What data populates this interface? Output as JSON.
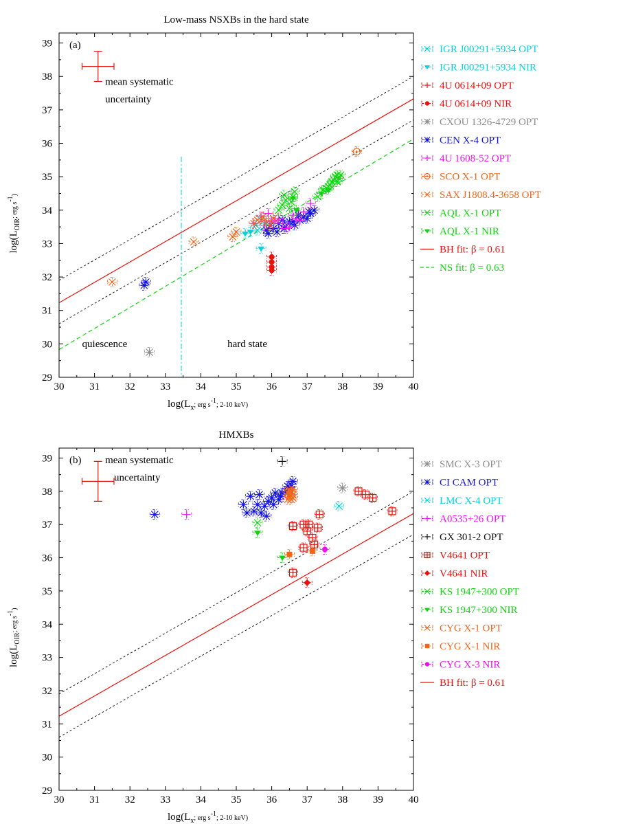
{
  "chart_data": [
    {
      "type": "scatter",
      "panel_label": "(a)",
      "title": "Low-mass NSXBs in the hard state",
      "xlabel": "log(L_x; erg s^-1; 2-10 keV)",
      "ylabel": "log(L_OIR; erg s^-1)",
      "xlim": [
        30,
        40
      ],
      "ylim": [
        29,
        39.3
      ],
      "x_ticks": [
        "30",
        "31",
        "32",
        "33",
        "34",
        "35",
        "36",
        "37",
        "38",
        "39",
        "40"
      ],
      "y_ticks": [
        "29",
        "30",
        "31",
        "32",
        "33",
        "34",
        "35",
        "36",
        "37",
        "38",
        "39"
      ],
      "grid": false,
      "legend_position": "right, outside plot",
      "annotations": {
        "uncertainty": [
          "mean systematic",
          "uncertainty"
        ],
        "left_region": "quiescence",
        "right_region": "hard state"
      },
      "systematic_error": {
        "x": 31.1,
        "y": 38.3,
        "xerr": 0.45,
        "yerr": 0.45
      },
      "divider_x": 33.45,
      "fits": [
        {
          "name": "BH fit: β = 0.61",
          "color": "#e8120c",
          "style": "solid",
          "x": [
            30,
            40
          ],
          "y": [
            31.23,
            37.33
          ]
        },
        {
          "name": "NS fit: β = 0.63",
          "color": "#11d411",
          "style": "dashed",
          "x": [
            30,
            40
          ],
          "y": [
            29.83,
            36.13
          ]
        }
      ],
      "bounds": [
        {
          "style": "dotted",
          "color": "#222222",
          "x": [
            30,
            40
          ],
          "y": [
            31.9,
            38.0
          ]
        },
        {
          "style": "dotted",
          "color": "#222222",
          "x": [
            30,
            40
          ],
          "y": [
            30.6,
            36.7
          ]
        }
      ],
      "series": [
        {
          "name": "IGR J00291+5934   OPT",
          "color": "#00d5dd",
          "marker": "x",
          "x": [
            35.55,
            35.7,
            35.85,
            35.6
          ],
          "y": [
            33.55,
            33.7,
            33.6,
            33.4
          ]
        },
        {
          "name": "IGR J00291+5934   NIR",
          "color": "#00d5dd",
          "marker": "tri",
          "x": [
            35.25,
            35.4,
            35.7
          ],
          "y": [
            33.3,
            33.35,
            32.85
          ]
        },
        {
          "name": "4U 0614+09   OPT",
          "color": "#e8120c",
          "marker": "plus",
          "x": [],
          "y": []
        },
        {
          "name": "4U 0614+09   NIR",
          "color": "#e8120c",
          "marker": "circle",
          "x": [
            36,
            36,
            36,
            36
          ],
          "y": [
            32.6,
            32.45,
            32.3,
            32.2
          ]
        },
        {
          "name": "CXOU 1326-4729   OPT",
          "color": "#8c8c8c",
          "marker": "star",
          "x": [
            32.55
          ],
          "y": [
            29.75
          ]
        },
        {
          "name": "CEN X-4   OPT",
          "color": "#1414e0",
          "marker": "star",
          "x": [
            32.4,
            32.45,
            35.9,
            36.05,
            36.2,
            36.35,
            36.5,
            36.65,
            36.8,
            36.9,
            37.0,
            37.1,
            37.2,
            35.95,
            36.15,
            36.4,
            36.6,
            36.75,
            35.85,
            36.3,
            37.05
          ],
          "y": [
            31.75,
            31.85,
            33.3,
            33.45,
            33.6,
            33.45,
            33.65,
            33.55,
            33.7,
            33.8,
            33.75,
            33.9,
            34.0,
            33.55,
            33.35,
            33.5,
            33.65,
            33.85,
            33.4,
            33.7,
            33.95
          ]
        },
        {
          "name": "4U 1608-52   OPT",
          "color": "#ee12ee",
          "marker": "plus",
          "x": [
            35.5,
            35.7,
            35.9,
            36.1,
            36.3,
            36.5,
            36.7,
            36.9,
            37.1,
            35.8,
            36.0,
            36.2,
            36.4,
            36.6,
            36.8
          ],
          "y": [
            33.6,
            33.8,
            33.9,
            33.7,
            33.6,
            33.5,
            33.75,
            33.95,
            34.2,
            33.55,
            33.65,
            33.75,
            33.45,
            33.85,
            33.7
          ]
        },
        {
          "name": "SCO X-1   OPT",
          "color": "#f26418",
          "marker": "odot",
          "x": [
            38.4
          ],
          "y": [
            35.75
          ]
        },
        {
          "name": "SAX J1808.4-3658   OPT",
          "color": "#f26418",
          "marker": "x",
          "x": [
            31.5,
            33.8,
            34.9,
            35.0,
            35.5,
            35.6,
            35.75,
            35.85,
            35.95,
            36.05
          ],
          "y": [
            31.85,
            33.05,
            33.2,
            33.35,
            33.6,
            33.7,
            33.8,
            33.65,
            33.55,
            33.75
          ]
        },
        {
          "name": "AQL X-1   OPT",
          "color": "#11d411",
          "marker": "x",
          "x": [
            36.2,
            36.3,
            36.4,
            36.5,
            36.6,
            36.65,
            37.3,
            37.45,
            37.55,
            37.65,
            37.7,
            37.75,
            37.8,
            37.85,
            37.9,
            37.95,
            36.35,
            36.55,
            37.6,
            37.85
          ],
          "y": [
            34.0,
            34.15,
            34.3,
            34.05,
            34.4,
            34.55,
            34.4,
            34.6,
            34.65,
            34.75,
            34.85,
            34.9,
            35.0,
            35.05,
            34.95,
            35.05,
            34.45,
            34.25,
            34.7,
            34.85
          ]
        },
        {
          "name": "AQL X-1   NIR",
          "color": "#11d411",
          "marker": "tri",
          "x": [
            36.6,
            36.7,
            37.4,
            37.6
          ],
          "y": [
            34.35,
            34.0,
            34.5,
            34.6
          ]
        }
      ]
    },
    {
      "type": "scatter",
      "panel_label": "(b)",
      "title": "HMXBs",
      "xlabel": "log(L_x; erg s^-1; 2-10 keV)",
      "ylabel": "log(L_OIR; erg s^-1)",
      "xlim": [
        30,
        40
      ],
      "ylim": [
        29,
        39.3
      ],
      "x_ticks": [
        "30",
        "31",
        "32",
        "33",
        "34",
        "35",
        "36",
        "37",
        "38",
        "39",
        "40"
      ],
      "y_ticks": [
        "29",
        "30",
        "31",
        "32",
        "33",
        "34",
        "35",
        "36",
        "37",
        "38",
        "39"
      ],
      "grid": false,
      "legend_position": "right, outside plot",
      "annotations": {
        "uncertainty": [
          "mean systematic",
          "uncertainty"
        ]
      },
      "systematic_error": {
        "x": 31.1,
        "y": 38.3,
        "xerr": 0.45,
        "yerr": 0.6
      },
      "fits": [
        {
          "name": "BH fit: β = 0.61",
          "color": "#e8120c",
          "style": "solid",
          "x": [
            30,
            40
          ],
          "y": [
            31.23,
            37.33
          ]
        }
      ],
      "bounds": [
        {
          "style": "dotted",
          "color": "#222222",
          "x": [
            30,
            40
          ],
          "y": [
            31.9,
            38.0
          ]
        },
        {
          "style": "dotted",
          "color": "#222222",
          "x": [
            30,
            40
          ],
          "y": [
            30.6,
            36.7
          ]
        }
      ],
      "series": [
        {
          "name": "SMC X-3   OPT",
          "color": "#8c8c8c",
          "marker": "star",
          "x": [
            38.0
          ],
          "y": [
            38.1
          ]
        },
        {
          "name": "CI CAM   OPT",
          "color": "#1414e0",
          "marker": "star",
          "x": [
            32.7,
            35.2,
            35.4,
            35.5,
            35.6,
            35.7,
            35.8,
            35.9,
            36.0,
            36.1,
            36.2,
            36.3,
            36.4,
            36.5,
            36.55,
            36.6,
            35.3,
            35.65,
            35.85,
            36.05,
            36.25,
            36.45
          ],
          "y": [
            37.3,
            37.6,
            37.85,
            37.4,
            37.6,
            37.35,
            37.55,
            37.7,
            37.8,
            37.95,
            37.75,
            37.95,
            38.0,
            38.1,
            38.2,
            38.3,
            37.35,
            37.9,
            37.25,
            37.6,
            37.85,
            38.15
          ]
        },
        {
          "name": "LMC X-4   OPT",
          "color": "#00d5dd",
          "marker": "x",
          "x": [
            37.9
          ],
          "y": [
            37.55
          ]
        },
        {
          "name": "A0535+26   OPT",
          "color": "#ee12ee",
          "marker": "plus",
          "x": [
            33.6
          ],
          "y": [
            37.3
          ]
        },
        {
          "name": "GX 301-2   OPT",
          "color": "#111111",
          "marker": "plus",
          "x": [
            36.3
          ],
          "y": [
            38.9
          ]
        },
        {
          "name": "V4641   OPT",
          "color": "#e8120c",
          "marker": "boxplus",
          "x": [
            36.6,
            36.9,
            37.0,
            37.05,
            37.15,
            37.2,
            37.3,
            37.35,
            36.9,
            36.6,
            38.45,
            38.65,
            38.85,
            39.4
          ],
          "y": [
            35.55,
            36.3,
            36.8,
            37.0,
            36.6,
            36.4,
            36.9,
            37.3,
            37.0,
            36.95,
            38.0,
            37.9,
            37.8,
            37.4
          ]
        },
        {
          "name": "V4641   NIR",
          "color": "#e8120c",
          "marker": "diamond",
          "x": [
            37.0
          ],
          "y": [
            35.25
          ]
        },
        {
          "name": "KS 1947+300   OPT",
          "color": "#11d411",
          "marker": "x",
          "x": [
            35.6
          ],
          "y": [
            37.05
          ]
        },
        {
          "name": "KS 1947+300   NIR",
          "color": "#11d411",
          "marker": "tri",
          "x": [
            35.6,
            36.3
          ],
          "y": [
            36.75,
            36.0
          ]
        },
        {
          "name": "CYG X-1   OPT",
          "color": "#f26418",
          "marker": "x",
          "x": [
            36.45,
            36.5,
            36.55,
            36.6,
            36.5,
            36.55,
            36.6,
            36.45,
            36.5,
            36.55,
            36.6
          ],
          "y": [
            37.75,
            37.85,
            37.95,
            38.05,
            37.9,
            38.0,
            37.8,
            37.95,
            38.05,
            37.75,
            37.9
          ]
        },
        {
          "name": "CYG X-1   NIR",
          "color": "#f26418",
          "marker": "square",
          "x": [
            36.5,
            37.15
          ],
          "y": [
            36.1,
            36.2
          ]
        },
        {
          "name": "CYG X-3   NIR",
          "color": "#ee12ee",
          "marker": "circle",
          "x": [
            37.5
          ],
          "y": [
            36.25
          ]
        }
      ]
    }
  ]
}
